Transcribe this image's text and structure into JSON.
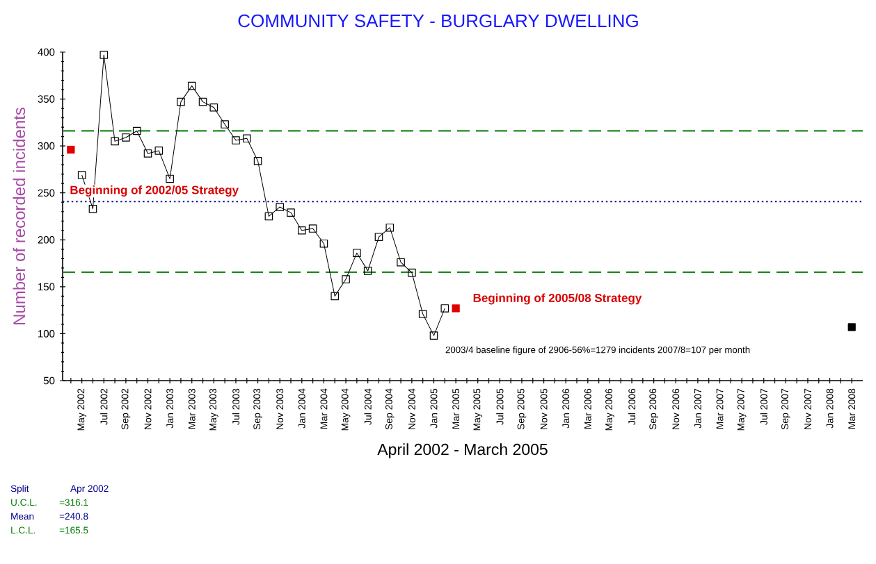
{
  "chart_data": {
    "type": "line",
    "title": "COMMUNITY SAFETY - BURGLARY DWELLING",
    "xlabel": "April 2002 - March 2005",
    "ylabel": "Number of recorded incidents",
    "categories": [
      null,
      "May 2002",
      null,
      "Jul 2002",
      null,
      "Sep 2002",
      null,
      "Nov 2002",
      null,
      "Jan 2003",
      null,
      "Mar 2003",
      null,
      "May 2003",
      null,
      "Jul 2003",
      null,
      "Sep 2003",
      null,
      "Nov 2003",
      null,
      "Jan 2004",
      null,
      "Mar 2004",
      null,
      "May 2004",
      null,
      "Jul 2004",
      null,
      "Sep 2004",
      null,
      "Nov 2004",
      null,
      "Jan 2005",
      null,
      "Mar 2005",
      null,
      "May 2005",
      null,
      "Jul 2005",
      null,
      "Sep 2005",
      null,
      "Nov 2005",
      null,
      "Jan 2006",
      null,
      "Mar 2006",
      null,
      "May 2006",
      null,
      "Jul 2006",
      null,
      "Sep 2006",
      null,
      "Nov 2006",
      null,
      "Jan 2007",
      null,
      "Mar 2007",
      null,
      "May 2007",
      null,
      "Jul 2007",
      null,
      "Sep 2007",
      null,
      "Nov 2007",
      null,
      "Jan 2008",
      null,
      "Mar 2008"
    ],
    "series": [
      {
        "color": "#000000",
        "values": [
          null,
          269,
          233,
          397,
          305,
          309,
          316,
          292,
          295,
          265,
          347,
          364,
          347,
          341,
          323,
          306,
          308,
          284,
          225,
          235,
          229,
          210,
          212,
          196,
          140,
          158,
          186,
          167,
          203,
          213,
          176,
          165,
          121,
          98,
          127,
          null,
          null,
          null,
          null,
          null,
          null,
          null,
          null,
          null,
          null,
          null,
          null,
          null,
          null,
          null,
          null,
          null,
          null,
          null,
          null,
          null,
          null,
          null,
          null,
          null,
          null,
          null,
          null,
          null,
          null,
          null,
          null,
          null,
          null,
          null,
          null,
          null
        ]
      },
      {
        "type": "scatter",
        "color": "#e00000",
        "values": [
          296,
          null,
          null,
          null,
          null,
          null,
          null,
          null,
          null,
          null,
          null,
          null,
          null,
          null,
          null,
          null,
          null,
          null,
          null,
          null,
          null,
          null,
          null,
          null,
          null,
          null,
          null,
          null,
          null,
          null,
          null,
          null,
          null,
          null,
          null,
          127,
          null,
          null,
          null,
          null,
          null,
          null,
          null,
          null,
          null,
          null,
          null,
          null,
          null,
          null,
          null,
          null,
          null,
          null,
          null,
          null,
          null,
          null,
          null,
          null,
          null,
          null,
          null,
          null,
          null,
          null,
          null,
          null,
          null,
          null,
          null,
          null
        ]
      },
      {
        "type": "scatter",
        "color": "#000000",
        "values": [
          null,
          null,
          null,
          null,
          null,
          null,
          null,
          null,
          null,
          null,
          null,
          null,
          null,
          null,
          null,
          null,
          null,
          null,
          null,
          null,
          null,
          null,
          null,
          null,
          null,
          null,
          null,
          null,
          null,
          null,
          null,
          null,
          null,
          null,
          null,
          null,
          null,
          null,
          null,
          null,
          null,
          null,
          null,
          null,
          null,
          null,
          null,
          null,
          null,
          null,
          null,
          null,
          null,
          null,
          null,
          null,
          null,
          null,
          null,
          null,
          null,
          null,
          null,
          null,
          null,
          null,
          null,
          null,
          null,
          null,
          null,
          107
        ]
      }
    ],
    "ylim": [
      50,
      400
    ],
    "yticks": [
      50,
      100,
      150,
      200,
      250,
      300,
      350,
      400
    ],
    "marker": "square",
    "ref_lines": [
      {
        "axis": "y",
        "value": 316.1,
        "color": "#1f8a1f",
        "line_style": "dashed"
      },
      {
        "axis": "y",
        "value": 240.8,
        "color": "#1a1aa0",
        "line_style": "dotted"
      },
      {
        "axis": "y",
        "value": 165.5,
        "color": "#1f8a1f",
        "line_style": "dashed"
      }
    ],
    "annotations": [
      "Beginning of 2002/05 Strategy",
      "Beginning of 2005/08 Strategy",
      "2003/4 baseline figure of 2906-56%=1279 incidents 2007/8=107 per month",
      "Split",
      "Apr 2002",
      "U.C.L.",
      "=316.1",
      "Mean",
      "=240.8",
      "L.C.L.",
      "=165.5"
    ]
  }
}
